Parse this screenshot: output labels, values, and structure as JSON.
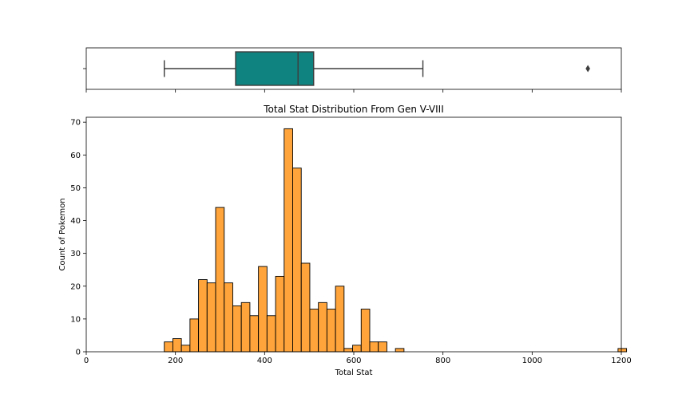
{
  "chart_data": [
    {
      "type": "box",
      "orientation": "horizontal",
      "xlim": [
        0,
        1200
      ],
      "min": 175,
      "q1": 335,
      "median": 475,
      "q3": 510,
      "max": 755,
      "outliers": [
        1125
      ],
      "color": "#0f837f"
    },
    {
      "type": "histogram",
      "title": "Total Stat Distribution From Gen V-VIII",
      "xlabel": "Total Stat",
      "ylabel": "Count of Pokemon",
      "xlim": [
        0,
        1200
      ],
      "ylim": [
        0,
        71.5
      ],
      "xticks": [
        0,
        200,
        400,
        600,
        800,
        1000,
        1200
      ],
      "yticks": [
        0,
        10,
        20,
        30,
        40,
        50,
        60,
        70
      ],
      "bin_width": 19.2,
      "bin_start": 175,
      "counts": [
        3,
        4,
        2,
        10,
        22,
        21,
        44,
        21,
        14,
        15,
        11,
        26,
        11,
        23,
        68,
        56,
        27,
        13,
        15,
        13,
        20,
        1,
        2,
        13,
        3,
        3,
        0,
        1,
        0,
        0,
        0,
        0,
        0,
        0,
        0,
        0,
        0,
        0,
        0,
        0,
        0,
        0,
        0,
        0,
        0,
        0,
        0,
        0,
        0,
        0,
        0,
        0,
        0,
        1
      ],
      "bar_color": "#ffa43a",
      "edge_color": "#000000",
      "grid": false
    }
  ]
}
